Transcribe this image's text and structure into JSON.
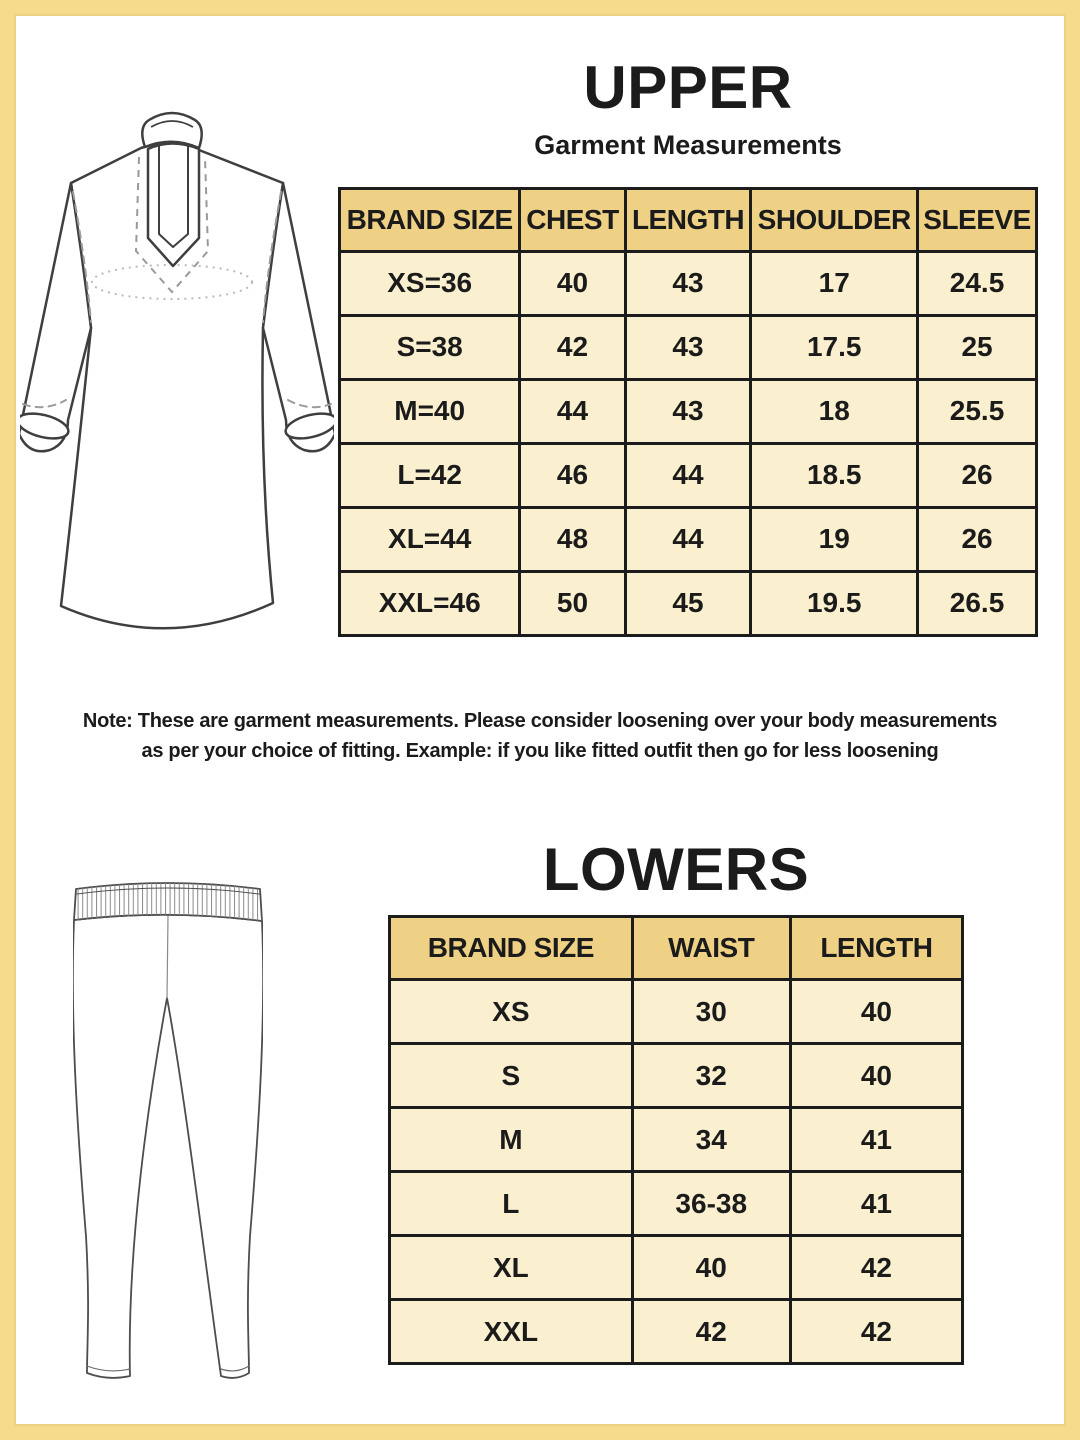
{
  "colors": {
    "frame": "#F5DB8B",
    "frame_inner": "#EFD184",
    "header_bg": "#EFD186",
    "row_bg": "#FAF0CF",
    "grid": "#1C1C1C",
    "text": "#1B1B1B"
  },
  "upper": {
    "title": "UPPER",
    "subtitle": "Garment Measurements",
    "illustration": "kurta-line-drawing",
    "table": {
      "headers": [
        "BRAND SIZE",
        "CHEST",
        "LENGTH",
        "SHOULDER",
        "SLEEVE"
      ],
      "rows": [
        [
          "XS=36",
          "40",
          "43",
          "17",
          "24.5"
        ],
        [
          "S=38",
          "42",
          "43",
          "17.5",
          "25"
        ],
        [
          "M=40",
          "44",
          "43",
          "18",
          "25.5"
        ],
        [
          "L=42",
          "46",
          "44",
          "18.5",
          "26"
        ],
        [
          "XL=44",
          "48",
          "44",
          "19",
          "26"
        ],
        [
          "XXL=46",
          "50",
          "45",
          "19.5",
          "26.5"
        ]
      ]
    }
  },
  "note": {
    "line1": "Note: These are garment measurements. Please consider loosening over your body measurements",
    "line2": "as per your choice of fitting. Example: if you like fitted outfit then go for less loosening"
  },
  "lowers": {
    "title": "LOWERS",
    "illustration": "pants-line-drawing",
    "table": {
      "headers": [
        "BRAND SIZE",
        "WAIST",
        "LENGTH"
      ],
      "rows": [
        [
          "XS",
          "30",
          "40"
        ],
        [
          "S",
          "32",
          "40"
        ],
        [
          "M",
          "34",
          "41"
        ],
        [
          "L",
          "36-38",
          "41"
        ],
        [
          "XL",
          "40",
          "42"
        ],
        [
          "XXL",
          "42",
          "42"
        ]
      ]
    }
  }
}
